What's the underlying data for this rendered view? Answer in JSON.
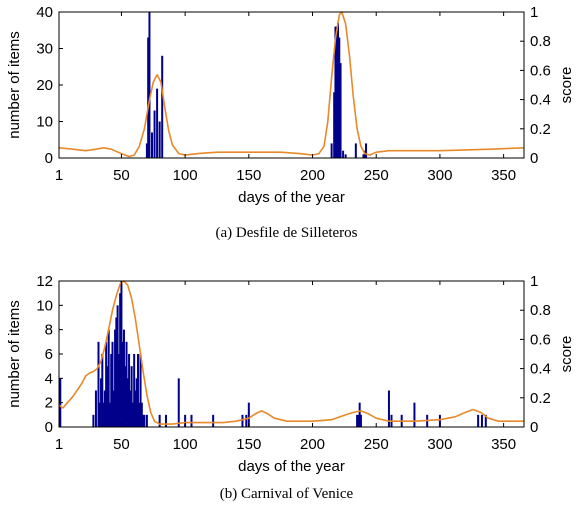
{
  "chart_data": [
    {
      "type": "bar",
      "caption": "(a)  Desfile de Silleteros",
      "xlabel": "days of the year",
      "ylabel": "number of items",
      "y2label": "score",
      "xlim": [
        1,
        366
      ],
      "ylim": [
        0,
        40
      ],
      "y2lim": [
        0,
        1
      ],
      "xticks": [
        1,
        50,
        100,
        150,
        200,
        250,
        300,
        350
      ],
      "yticks": [
        0,
        10,
        20,
        30,
        40
      ],
      "y2ticks": [
        0,
        0.2,
        0.4,
        0.6,
        0.8,
        1
      ],
      "bar_color": "#00008b",
      "line_color": "#e8892a",
      "bars": [
        [
          70,
          4
        ],
        [
          71,
          33
        ],
        [
          72,
          40
        ],
        [
          74,
          7
        ],
        [
          76,
          13
        ],
        [
          78,
          19
        ],
        [
          80,
          10
        ],
        [
          82,
          28
        ],
        [
          215,
          4
        ],
        [
          217,
          18
        ],
        [
          218,
          36
        ],
        [
          219,
          36
        ],
        [
          220,
          37
        ],
        [
          221,
          33
        ],
        [
          222,
          26
        ],
        [
          224,
          2
        ],
        [
          226,
          1
        ],
        [
          234,
          4
        ],
        [
          240,
          1
        ],
        [
          241,
          2
        ],
        [
          242,
          4
        ]
      ],
      "score_curve": [
        [
          1,
          0.07
        ],
        [
          12,
          0.06
        ],
        [
          22,
          0.05
        ],
        [
          30,
          0.06
        ],
        [
          36,
          0.07
        ],
        [
          42,
          0.06
        ],
        [
          50,
          0.03
        ],
        [
          56,
          0.01
        ],
        [
          60,
          0.02
        ],
        [
          64,
          0.08
        ],
        [
          68,
          0.2
        ],
        [
          72,
          0.4
        ],
        [
          75,
          0.52
        ],
        [
          78,
          0.57
        ],
        [
          81,
          0.52
        ],
        [
          84,
          0.35
        ],
        [
          87,
          0.19
        ],
        [
          90,
          0.09
        ],
        [
          95,
          0.03
        ],
        [
          100,
          0.02
        ],
        [
          110,
          0.03
        ],
        [
          125,
          0.04
        ],
        [
          150,
          0.04
        ],
        [
          175,
          0.04
        ],
        [
          190,
          0.03
        ],
        [
          200,
          0.02
        ],
        [
          205,
          0.03
        ],
        [
          209,
          0.08
        ],
        [
          212,
          0.25
        ],
        [
          215,
          0.55
        ],
        [
          218,
          0.82
        ],
        [
          221,
          0.98
        ],
        [
          223,
          1.0
        ],
        [
          226,
          0.92
        ],
        [
          229,
          0.7
        ],
        [
          232,
          0.42
        ],
        [
          235,
          0.2
        ],
        [
          238,
          0.08
        ],
        [
          241,
          0.03
        ],
        [
          245,
          0.02
        ],
        [
          250,
          0.04
        ],
        [
          260,
          0.05
        ],
        [
          300,
          0.05
        ],
        [
          340,
          0.06
        ],
        [
          366,
          0.07
        ]
      ]
    },
    {
      "type": "bar",
      "caption": "(b)  Carnival of Venice",
      "xlabel": "days of the year",
      "ylabel": "number of items",
      "y2label": "score",
      "xlim": [
        1,
        366
      ],
      "ylim": [
        0,
        12
      ],
      "y2lim": [
        0,
        1
      ],
      "xticks": [
        1,
        50,
        100,
        150,
        200,
        250,
        300,
        350
      ],
      "yticks": [
        0,
        2,
        4,
        6,
        8,
        10,
        12
      ],
      "y2ticks": [
        0,
        0.2,
        0.4,
        0.6,
        0.8,
        1
      ],
      "bar_color": "#00008b",
      "line_color": "#e8892a",
      "bars": [
        [
          2,
          4
        ],
        [
          28,
          1
        ],
        [
          30,
          3
        ],
        [
          32,
          7
        ],
        [
          33,
          2
        ],
        [
          34,
          4
        ],
        [
          35,
          6
        ],
        [
          36,
          2
        ],
        [
          37,
          3
        ],
        [
          38,
          7
        ],
        [
          39,
          5
        ],
        [
          40,
          8
        ],
        [
          41,
          2
        ],
        [
          42,
          6
        ],
        [
          43,
          7
        ],
        [
          44,
          3
        ],
        [
          45,
          8
        ],
        [
          46,
          9
        ],
        [
          47,
          10
        ],
        [
          48,
          6
        ],
        [
          49,
          11
        ],
        [
          50,
          12
        ],
        [
          51,
          7
        ],
        [
          52,
          8
        ],
        [
          53,
          5
        ],
        [
          54,
          7
        ],
        [
          55,
          4
        ],
        [
          56,
          6
        ],
        [
          57,
          3
        ],
        [
          58,
          5
        ],
        [
          59,
          2
        ],
        [
          60,
          6
        ],
        [
          61,
          3
        ],
        [
          62,
          4
        ],
        [
          63,
          6
        ],
        [
          64,
          2
        ],
        [
          65,
          6
        ],
        [
          66,
          2
        ],
        [
          67,
          1
        ],
        [
          68,
          1
        ],
        [
          70,
          1
        ],
        [
          80,
          1
        ],
        [
          85,
          1
        ],
        [
          95,
          4
        ],
        [
          100,
          1
        ],
        [
          105,
          1
        ],
        [
          122,
          1
        ],
        [
          145,
          1
        ],
        [
          148,
          1
        ],
        [
          150,
          2
        ],
        [
          235,
          1
        ],
        [
          236,
          1
        ],
        [
          237,
          2
        ],
        [
          238,
          1
        ],
        [
          260,
          3
        ],
        [
          262,
          1
        ],
        [
          270,
          1
        ],
        [
          280,
          2
        ],
        [
          290,
          1
        ],
        [
          300,
          1
        ],
        [
          330,
          1
        ],
        [
          333,
          1
        ],
        [
          336,
          1
        ]
      ],
      "score_curve": [
        [
          1,
          0.15
        ],
        [
          4,
          0.13
        ],
        [
          8,
          0.17
        ],
        [
          12,
          0.21
        ],
        [
          16,
          0.26
        ],
        [
          19,
          0.3
        ],
        [
          22,
          0.35
        ],
        [
          25,
          0.37
        ],
        [
          28,
          0.38
        ],
        [
          31,
          0.4
        ],
        [
          34,
          0.45
        ],
        [
          37,
          0.55
        ],
        [
          40,
          0.67
        ],
        [
          43,
          0.8
        ],
        [
          46,
          0.9
        ],
        [
          49,
          0.98
        ],
        [
          52,
          1.0
        ],
        [
          55,
          0.97
        ],
        [
          58,
          0.88
        ],
        [
          61,
          0.74
        ],
        [
          64,
          0.56
        ],
        [
          67,
          0.38
        ],
        [
          70,
          0.22
        ],
        [
          73,
          0.1
        ],
        [
          76,
          0.04
        ],
        [
          80,
          0.02
        ],
        [
          90,
          0.02
        ],
        [
          100,
          0.03
        ],
        [
          110,
          0.03
        ],
        [
          120,
          0.03
        ],
        [
          130,
          0.03
        ],
        [
          140,
          0.04
        ],
        [
          150,
          0.06
        ],
        [
          155,
          0.09
        ],
        [
          160,
          0.11
        ],
        [
          165,
          0.09
        ],
        [
          170,
          0.06
        ],
        [
          180,
          0.04
        ],
        [
          200,
          0.04
        ],
        [
          215,
          0.05
        ],
        [
          225,
          0.08
        ],
        [
          232,
          0.1
        ],
        [
          238,
          0.11
        ],
        [
          244,
          0.09
        ],
        [
          250,
          0.06
        ],
        [
          260,
          0.04
        ],
        [
          280,
          0.04
        ],
        [
          300,
          0.05
        ],
        [
          312,
          0.07
        ],
        [
          320,
          0.1
        ],
        [
          326,
          0.12
        ],
        [
          332,
          0.1
        ],
        [
          338,
          0.06
        ],
        [
          346,
          0.04
        ],
        [
          356,
          0.04
        ],
        [
          366,
          0.04
        ]
      ]
    }
  ]
}
